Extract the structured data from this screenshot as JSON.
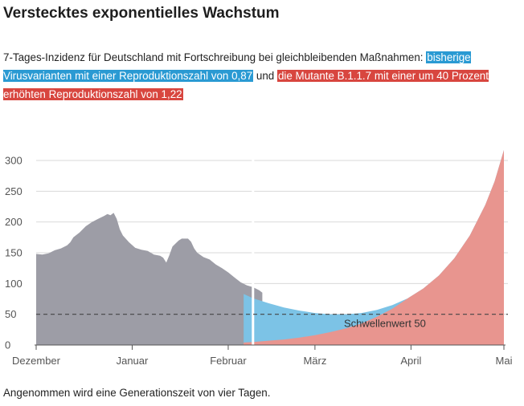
{
  "header": {
    "title": "Verstecktes exponentielles Wachstum",
    "subtitle_lead": "7-Tages-Inzidenz für Deutschland mit Fortschreibung bei gleichbleibenden Maßnahmen:",
    "subtitle_blue": "bisherige Virusvarianten mit einer Reproduktionszahl von 0,87",
    "subtitle_mid": "und",
    "subtitle_red": "die Mutante B.1.1.7 mit einer um 40 Prozent erhöhten Reproduktionszahl von 1,22"
  },
  "footnote": "Angenommen wird eine Generationszeit von vier Tagen.",
  "colors": {
    "history": "#9d9da6",
    "blue": "#7cc3e6",
    "red": "#e8958f",
    "grid": "#d9d9d9",
    "threshold": "#444444"
  },
  "chart_data": {
    "type": "area",
    "ylim": [
      0,
      320
    ],
    "y_ticks": [
      0,
      50,
      100,
      150,
      200,
      250,
      300
    ],
    "x_ticks": [
      {
        "label": "Dezember",
        "day": 0
      },
      {
        "label": "Januar",
        "day": 31
      },
      {
        "label": "Februar",
        "day": 62
      },
      {
        "label": "März",
        "day": 90
      },
      {
        "label": "April",
        "day": 121
      },
      {
        "label": "Mai",
        "day": 151
      }
    ],
    "threshold": {
      "value": 50,
      "label": "Schwellenwert 50"
    },
    "series": [
      {
        "key": "history",
        "points": [
          [
            0,
            148
          ],
          [
            2,
            147
          ],
          [
            4,
            149
          ],
          [
            6,
            154
          ],
          [
            8,
            157
          ],
          [
            10,
            162
          ],
          [
            11,
            167
          ],
          [
            12,
            175
          ],
          [
            14,
            183
          ],
          [
            16,
            193
          ],
          [
            18,
            200
          ],
          [
            20,
            205
          ],
          [
            22,
            210
          ],
          [
            23,
            213
          ],
          [
            24,
            211
          ],
          [
            25,
            215
          ],
          [
            26,
            205
          ],
          [
            27,
            188
          ],
          [
            28,
            178
          ],
          [
            30,
            167
          ],
          [
            32,
            158
          ],
          [
            34,
            155
          ],
          [
            36,
            153
          ],
          [
            38,
            147
          ],
          [
            40,
            145
          ],
          [
            41,
            142
          ],
          [
            42,
            134
          ],
          [
            43,
            146
          ],
          [
            44,
            160
          ],
          [
            46,
            170
          ],
          [
            47,
            173
          ],
          [
            49,
            173
          ],
          [
            50,
            168
          ],
          [
            51,
            157
          ],
          [
            52,
            150
          ],
          [
            54,
            143
          ],
          [
            56,
            139
          ],
          [
            58,
            131
          ],
          [
            60,
            125
          ],
          [
            62,
            118
          ],
          [
            64,
            110
          ],
          [
            66,
            102
          ],
          [
            68,
            97
          ],
          [
            70,
            94
          ],
          [
            72,
            89
          ],
          [
            73,
            85
          ]
        ]
      },
      {
        "key": "total",
        "points": [
          [
            67,
            83
          ],
          [
            70,
            76
          ],
          [
            75,
            68
          ],
          [
            80,
            61
          ],
          [
            85,
            56
          ],
          [
            90,
            52
          ],
          [
            95,
            50
          ],
          [
            100,
            50
          ],
          [
            105,
            52
          ],
          [
            110,
            57
          ],
          [
            115,
            65
          ],
          [
            120,
            76
          ],
          [
            125,
            92
          ],
          [
            130,
            113
          ],
          [
            135,
            141
          ],
          [
            140,
            178
          ],
          [
            145,
            228
          ],
          [
            148,
            266
          ],
          [
            151,
            317
          ]
        ]
      },
      {
        "key": "mutant",
        "points": [
          [
            67,
            4
          ],
          [
            70,
            5
          ],
          [
            75,
            7
          ],
          [
            80,
            9
          ],
          [
            85,
            12
          ],
          [
            90,
            16
          ],
          [
            95,
            21
          ],
          [
            100,
            27
          ],
          [
            105,
            35
          ],
          [
            110,
            46
          ],
          [
            115,
            59
          ],
          [
            120,
            76
          ],
          [
            125,
            92
          ],
          [
            130,
            113
          ],
          [
            135,
            141
          ],
          [
            140,
            178
          ],
          [
            145,
            228
          ],
          [
            148,
            266
          ],
          [
            151,
            317
          ]
        ]
      }
    ]
  }
}
